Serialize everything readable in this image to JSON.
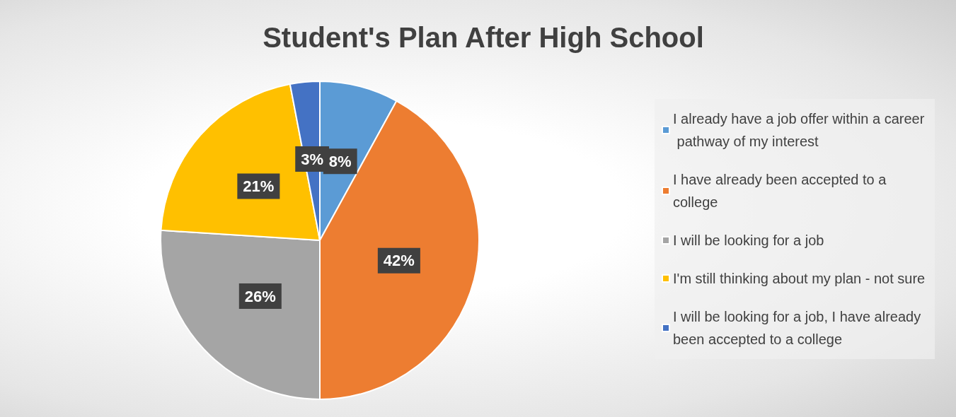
{
  "chart_data": {
    "type": "pie",
    "title": "Student's Plan After High School",
    "categories": [
      "I already have a job offer within a career pathway of my interest",
      "I have already been accepted to a college",
      "I will be looking for a job",
      "I'm still thinking about my plan - not sure",
      "I will be looking for a job, I have already been accepted to a college"
    ],
    "values": [
      8,
      42,
      26,
      21,
      3
    ],
    "colors": [
      "#5b9bd5",
      "#ed7d31",
      "#a5a5a5",
      "#ffc000",
      "#4472c4"
    ],
    "value_labels": [
      "8%",
      "42%",
      "26%",
      "21%",
      "3%"
    ],
    "legend": "right"
  }
}
